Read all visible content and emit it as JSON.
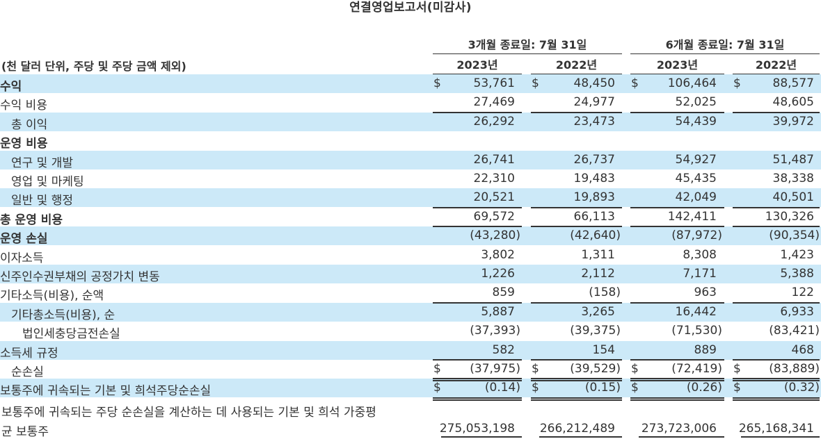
{
  "title": "연결영업보고서(미감사)",
  "header": {
    "unit_note": "(천 달러 단위, 주당 및 주당 금액 제외)",
    "group1": "3개월 종료일: 7월 31일",
    "group2": "6개월 종료일: 7월 31일",
    "years": [
      "2023년",
      "2022년",
      "2023년",
      "2022년"
    ]
  },
  "currency_symbol": "$",
  "rows": [
    {
      "label": "수익",
      "bold": true,
      "band": true,
      "dollar": true,
      "values": [
        "53,761",
        "48,450",
        "106,464",
        "88,577"
      ]
    },
    {
      "label": "수익 비용",
      "band": false,
      "values": [
        "27,469",
        "24,977",
        "52,025",
        "48,605"
      ]
    },
    {
      "label": "총 이익",
      "indent": 1,
      "band": true,
      "values": [
        "26,292",
        "23,473",
        "54,439",
        "39,972"
      ]
    },
    {
      "label": "운영 비용",
      "bold": true,
      "band": false,
      "values": [
        "",
        "",
        "",
        ""
      ]
    },
    {
      "label": "연구 및 개발",
      "indent": 1,
      "band": true,
      "values": [
        "26,741",
        "26,737",
        "54,927",
        "51,487"
      ]
    },
    {
      "label": "영업 및 마케팅",
      "indent": 1,
      "band": false,
      "values": [
        "22,310",
        "19,483",
        "45,435",
        "38,338"
      ]
    },
    {
      "label": "일반 및 행정",
      "indent": 1,
      "band": true,
      "values": [
        "20,521",
        "19,893",
        "42,049",
        "40,501"
      ]
    },
    {
      "label": "총 운영 비용",
      "bold": true,
      "band": false,
      "values": [
        "69,572",
        "66,113",
        "142,411",
        "130,326"
      ]
    },
    {
      "label": "운영 손실",
      "bold": true,
      "band": true,
      "values": [
        "(43,280)",
        "(42,640)",
        "(87,972)",
        "(90,354)"
      ]
    },
    {
      "label": "이자소득",
      "band": false,
      "values": [
        "3,802",
        "1,311",
        "8,308",
        "1,423"
      ]
    },
    {
      "label": "신주인수권부채의 공정가치 변동",
      "band": true,
      "values": [
        "1,226",
        "2,112",
        "7,171",
        "5,388"
      ]
    },
    {
      "label": "기타소득(비용), 순액",
      "band": false,
      "values": [
        "859",
        "(158)",
        "963",
        "122"
      ]
    },
    {
      "label": "기타총소득(비용), 순",
      "indent": 1,
      "band": true,
      "values": [
        "5,887",
        "3,265",
        "16,442",
        "6,933"
      ]
    },
    {
      "label": "법인세충당금전손실",
      "indent": 2,
      "band": false,
      "values": [
        "(37,393)",
        "(39,375)",
        "(71,530)",
        "(83,421)"
      ]
    },
    {
      "label": "소득세 규정",
      "band": true,
      "values": [
        "582",
        "154",
        "889",
        "468"
      ]
    },
    {
      "label": "순손실",
      "indent": 1,
      "band": false,
      "dollar": true,
      "values": [
        "(37,975)",
        "(39,529)",
        "(72,419)",
        "(83,889)"
      ]
    },
    {
      "label": "보통주에 귀속되는 기본 및 희석주당순손실",
      "band": true,
      "dollar": true,
      "values": [
        "(0.14)",
        "(0.15)",
        "(0.26)",
        "(0.32)"
      ]
    }
  ],
  "last_row": {
    "label_line1": "보통주에 귀속되는 주당 순손실을 계산하는 데 사용되는 기본 및 희석 가중평",
    "label_line2": "균 보통주",
    "values": [
      "275,053,198",
      "266,212,489",
      "273,723,006",
      "265,168,341"
    ]
  }
}
